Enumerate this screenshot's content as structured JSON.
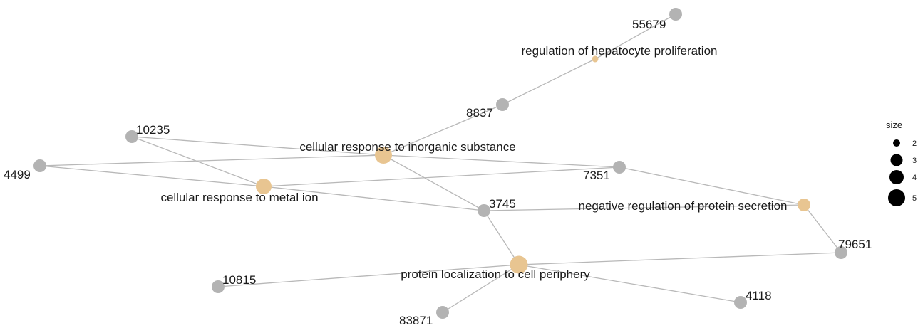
{
  "colors": {
    "category_node": "#e8c591",
    "gene_node": "#b3b3b3",
    "edge": "#b8b8b8",
    "legend_point": "#000000"
  },
  "nodes": [
    {
      "id": "55679",
      "label": "55679",
      "kind": "gene",
      "size": null
    },
    {
      "id": "rhp",
      "label": "regulation of hepatocyte proliferation",
      "kind": "category",
      "size": 1
    },
    {
      "id": "8837",
      "label": "8837",
      "kind": "gene",
      "size": null
    },
    {
      "id": "10235",
      "label": "10235",
      "kind": "gene",
      "size": null
    },
    {
      "id": "cris",
      "label": "cellular response to inorganic substance",
      "kind": "category",
      "size": 4
    },
    {
      "id": "4499",
      "label": "4499",
      "kind": "gene",
      "size": null
    },
    {
      "id": "7351",
      "label": "7351",
      "kind": "gene",
      "size": null
    },
    {
      "id": "crmi",
      "label": "cellular response to metal ion",
      "kind": "category",
      "size": 3
    },
    {
      "id": "3745",
      "label": "3745",
      "kind": "gene",
      "size": null
    },
    {
      "id": "nrps",
      "label": "negative regulation of protein secretion",
      "kind": "category",
      "size": 2
    },
    {
      "id": "79651",
      "label": "79651",
      "kind": "gene",
      "size": null
    },
    {
      "id": "plcp",
      "label": "protein localization to cell periphery",
      "kind": "category",
      "size": 5
    },
    {
      "id": "10815",
      "label": "10815",
      "kind": "gene",
      "size": null
    },
    {
      "id": "4118",
      "label": "4118",
      "kind": "gene",
      "size": null
    },
    {
      "id": "83871",
      "label": "83871",
      "kind": "gene",
      "size": null
    }
  ],
  "edges": [
    [
      "rhp",
      "55679"
    ],
    [
      "rhp",
      "8837"
    ],
    [
      "cris",
      "8837"
    ],
    [
      "cris",
      "10235"
    ],
    [
      "cris",
      "4499"
    ],
    [
      "cris",
      "7351"
    ],
    [
      "cris",
      "3745"
    ],
    [
      "crmi",
      "10235"
    ],
    [
      "crmi",
      "4499"
    ],
    [
      "crmi",
      "7351"
    ],
    [
      "crmi",
      "3745"
    ],
    [
      "nrps",
      "3745"
    ],
    [
      "nrps",
      "7351"
    ],
    [
      "nrps",
      "79651"
    ],
    [
      "plcp",
      "3745"
    ],
    [
      "plcp",
      "79651"
    ],
    [
      "plcp",
      "10815"
    ],
    [
      "plcp",
      "4118"
    ],
    [
      "plcp",
      "83871"
    ]
  ],
  "legend": {
    "title": "size",
    "items": [
      {
        "label": "2",
        "value": 2
      },
      {
        "label": "3",
        "value": 3
      },
      {
        "label": "4",
        "value": 4
      },
      {
        "label": "5",
        "value": 5
      }
    ]
  }
}
